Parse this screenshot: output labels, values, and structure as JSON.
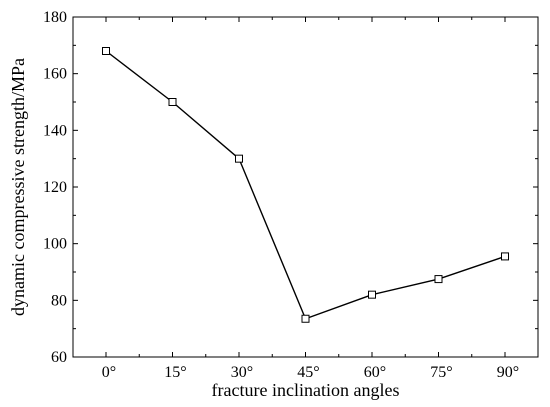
{
  "chart_data": {
    "type": "line",
    "title": "",
    "xlabel": "fracture inclination angles",
    "ylabel": "dynamic compressive strength/MPa",
    "categories": [
      "0°",
      "15°",
      "30°",
      "45°",
      "60°",
      "75°",
      "90°"
    ],
    "series": [
      {
        "values": [
          168,
          150,
          130,
          73.5,
          82,
          87.5,
          95.5
        ]
      }
    ],
    "ylim": [
      60,
      180
    ],
    "yticks": [
      60,
      80,
      100,
      120,
      140,
      160,
      180
    ],
    "ytick_labels": [
      "60",
      "80",
      "100",
      "120",
      "140",
      "160",
      "180"
    ],
    "grid": false,
    "legend": "none",
    "marker": "open-square",
    "line_color": "#000000"
  }
}
